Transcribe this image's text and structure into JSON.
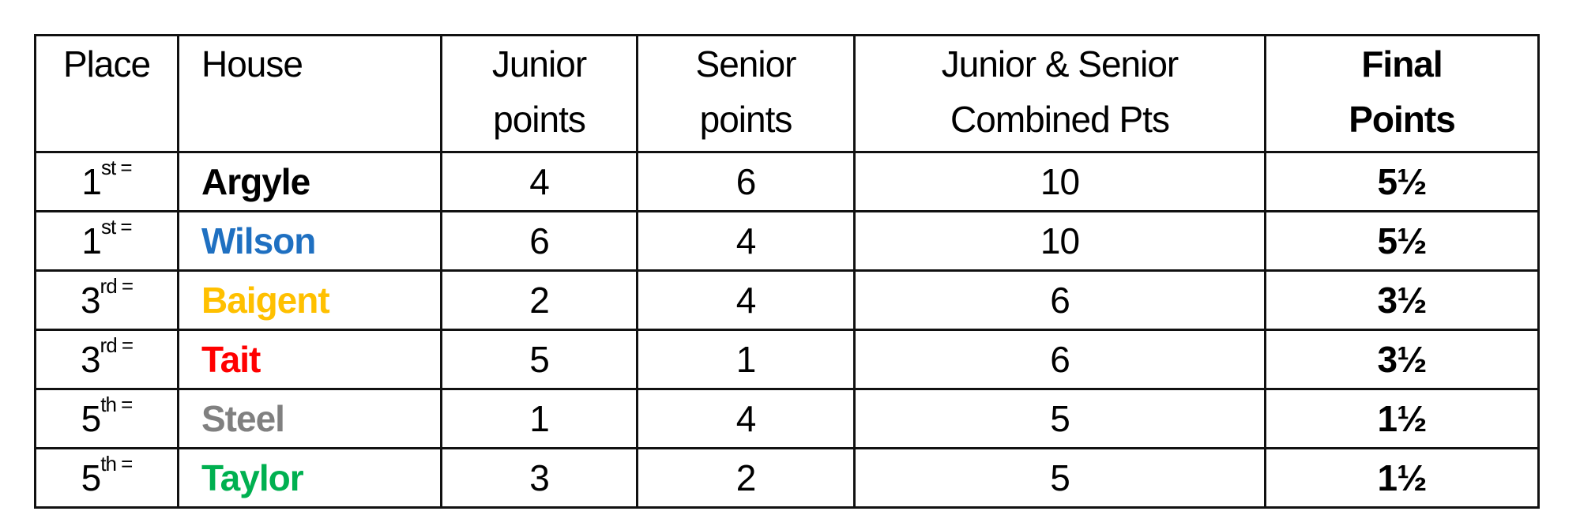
{
  "headers": {
    "place": "Place",
    "house": "House",
    "junior_line1": "Junior",
    "junior_line2": "points",
    "senior_line1": "Senior",
    "senior_line2": "points",
    "combined_line1": "Junior & Senior",
    "combined_line2": "Combined Pts",
    "final_line1": "Final",
    "final_line2": "Points"
  },
  "rows": [
    {
      "place": "1",
      "suffix": "st =",
      "house": "Argyle",
      "color": "#000000",
      "junior": "4",
      "senior": "6",
      "combined": "10",
      "final": "5½"
    },
    {
      "place": "1",
      "suffix": "st =",
      "house": "Wilson",
      "color": "#1f70c1",
      "junior": "6",
      "senior": "4",
      "combined": "10",
      "final": "5½"
    },
    {
      "place": "3",
      "suffix": "rd =",
      "house": "Baigent",
      "color": "#ffc000",
      "junior": "2",
      "senior": "4",
      "combined": "6",
      "final": "3½"
    },
    {
      "place": "3",
      "suffix": "rd =",
      "house": "Tait",
      "color": "#ff0000",
      "junior": "5",
      "senior": "1",
      "combined": "6",
      "final": "3½"
    },
    {
      "place": "5",
      "suffix": "th =",
      "house": "Steel",
      "color": "#808080",
      "junior": "1",
      "senior": "4",
      "combined": "5",
      "final": "1½"
    },
    {
      "place": "5",
      "suffix": "th =",
      "house": "Taylor",
      "color": "#00b050",
      "junior": "3",
      "senior": "2",
      "combined": "5",
      "final": "1½"
    }
  ]
}
